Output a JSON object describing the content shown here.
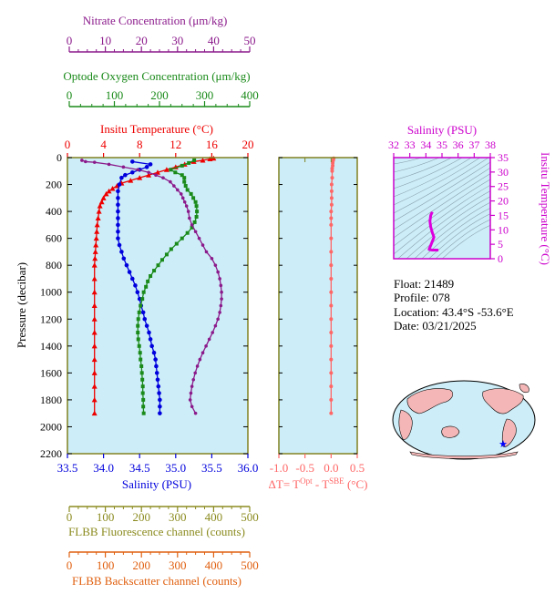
{
  "colors": {
    "nitrate": "#8b1a8b",
    "oxygen": "#1a8a1a",
    "temperature": "#ee0000",
    "salinity": "#0000dd",
    "delta": "#ff6666",
    "salinity_axis": "#cc00cc",
    "fluor": "#8b8b20",
    "backscatter": "#e06010",
    "plot_bg": "#cdeef8",
    "frame": "#808020"
  },
  "info": {
    "float": "Float:  21489",
    "profile": "Profile:  078",
    "location": "Location:  43.4°S  -53.6°E",
    "date": "Date:  03/21/2025"
  },
  "chart_data": [
    {
      "type": "line",
      "ylabel": "Pressure (decibar)",
      "ylim": [
        2200,
        0
      ],
      "yticks": [
        "0",
        "200",
        "400",
        "600",
        "800",
        "1000",
        "1200",
        "1400",
        "1600",
        "1800",
        "2000",
        "2200"
      ],
      "axes": {
        "nitrate": {
          "label": "Nitrate Concentration (μm/kg)",
          "range": [
            0,
            50
          ],
          "ticks": [
            "0",
            "10",
            "20",
            "30",
            "40",
            "50"
          ]
        },
        "oxygen": {
          "label": "Optode Oxygen Concentration (μm/kg)",
          "range": [
            0,
            400
          ],
          "ticks": [
            "0",
            "100",
            "200",
            "300",
            "400"
          ]
        },
        "temperature": {
          "label": "Insitu Temperature (°C)",
          "range": [
            0,
            20
          ],
          "ticks": [
            "0",
            "4",
            "8",
            "12",
            "16",
            "20"
          ]
        },
        "salinity": {
          "label": "Salinity (PSU)",
          "range": [
            33.5,
            36.0
          ],
          "ticks": [
            "33.5",
            "34.0",
            "34.5",
            "35.0",
            "35.5",
            "36.0"
          ]
        },
        "fluor": {
          "label": "FLBB Fluorescence channel (counts)",
          "range": [
            0,
            500
          ],
          "ticks": [
            "0",
            "100",
            "200",
            "300",
            "400",
            "500"
          ]
        },
        "backscatter": {
          "label": "FLBB Backscatter channel (counts)",
          "range": [
            0,
            500
          ],
          "ticks": [
            "0",
            "100",
            "200",
            "300",
            "400",
            "500"
          ]
        }
      },
      "series": [
        {
          "name": "temperature",
          "points": [
            [
              16.2,
              5
            ],
            [
              15.8,
              10
            ],
            [
              15,
              20
            ],
            [
              14,
              30
            ],
            [
              13,
              50
            ],
            [
              12,
              70
            ],
            [
              11,
              90
            ],
            [
              10,
              110
            ],
            [
              9,
              130
            ],
            [
              8,
              150
            ],
            [
              7,
              170
            ],
            [
              6,
              190
            ],
            [
              5.5,
              210
            ],
            [
              5,
              230
            ],
            [
              4.6,
              250
            ],
            [
              4.3,
              270
            ],
            [
              4,
              300
            ],
            [
              3.8,
              330
            ],
            [
              3.6,
              360
            ],
            [
              3.5,
              400
            ],
            [
              3.4,
              450
            ],
            [
              3.3,
              500
            ],
            [
              3.25,
              550
            ],
            [
              3.2,
              600
            ],
            [
              3.15,
              650
            ],
            [
              3.1,
              700
            ],
            [
              3.05,
              750
            ],
            [
              3,
              800
            ],
            [
              3,
              900
            ],
            [
              3,
              1000
            ],
            [
              3,
              1100
            ],
            [
              3,
              1200
            ],
            [
              3,
              1300
            ],
            [
              3,
              1400
            ],
            [
              3,
              1500
            ],
            [
              3,
              1600
            ],
            [
              3,
              1700
            ],
            [
              3,
              1800
            ],
            [
              3,
              1900
            ]
          ]
        },
        {
          "name": "salinity",
          "points": [
            [
              34.4,
              30
            ],
            [
              34.65,
              50
            ],
            [
              34.6,
              70
            ],
            [
              34.5,
              90
            ],
            [
              34.4,
              110
            ],
            [
              34.3,
              130
            ],
            [
              34.25,
              150
            ],
            [
              34.22,
              200
            ],
            [
              34.2,
              250
            ],
            [
              34.2,
              300
            ],
            [
              34.2,
              350
            ],
            [
              34.2,
              400
            ],
            [
              34.2,
              450
            ],
            [
              34.2,
              500
            ],
            [
              34.2,
              550
            ],
            [
              34.2,
              600
            ],
            [
              34.22,
              650
            ],
            [
              34.25,
              700
            ],
            [
              34.28,
              750
            ],
            [
              34.32,
              800
            ],
            [
              34.36,
              850
            ],
            [
              34.4,
              900
            ],
            [
              34.44,
              950
            ],
            [
              34.47,
              1000
            ],
            [
              34.5,
              1050
            ],
            [
              34.52,
              1100
            ],
            [
              34.55,
              1150
            ],
            [
              34.57,
              1200
            ],
            [
              34.6,
              1250
            ],
            [
              34.63,
              1300
            ],
            [
              34.65,
              1350
            ],
            [
              34.67,
              1400
            ],
            [
              34.7,
              1450
            ],
            [
              34.72,
              1500
            ],
            [
              34.73,
              1550
            ],
            [
              34.74,
              1600
            ],
            [
              34.75,
              1650
            ],
            [
              34.76,
              1700
            ],
            [
              34.77,
              1750
            ],
            [
              34.78,
              1800
            ],
            [
              34.78,
              1850
            ],
            [
              34.78,
              1900
            ]
          ]
        },
        {
          "name": "oxygen",
          "points": [
            [
              277,
              20
            ],
            [
              265,
              40
            ],
            [
              250,
              60
            ],
            [
              225,
              90
            ],
            [
              235,
              110
            ],
            [
              250,
              130
            ],
            [
              255,
              150
            ],
            [
              255,
              180
            ],
            [
              258,
              210
            ],
            [
              262,
              240
            ],
            [
              270,
              270
            ],
            [
              275,
              300
            ],
            [
              280,
              330
            ],
            [
              282,
              360
            ],
            [
              283,
              400
            ],
            [
              282,
              440
            ],
            [
              278,
              480
            ],
            [
              272,
              520
            ],
            [
              262,
              560
            ],
            [
              250,
              600
            ],
            [
              238,
              640
            ],
            [
              226,
              680
            ],
            [
              216,
              720
            ],
            [
              206,
              760
            ],
            [
              197,
              800
            ],
            [
              188,
              840
            ],
            [
              180,
              880
            ],
            [
              174,
              920
            ],
            [
              170,
              960
            ],
            [
              165,
              1000
            ],
            [
              162,
              1050
            ],
            [
              158,
              1100
            ],
            [
              155,
              1150
            ],
            [
              153,
              1200
            ],
            [
              152,
              1250
            ],
            [
              152,
              1300
            ],
            [
              153,
              1350
            ],
            [
              155,
              1400
            ],
            [
              157,
              1450
            ],
            [
              158,
              1500
            ],
            [
              160,
              1550
            ],
            [
              161,
              1600
            ],
            [
              162,
              1650
            ],
            [
              163,
              1700
            ],
            [
              163,
              1750
            ],
            [
              164,
              1800
            ],
            [
              164,
              1850
            ],
            [
              165,
              1900
            ]
          ]
        },
        {
          "name": "nitrate",
          "points": [
            [
              3.5,
              20
            ],
            [
              4.5,
              30
            ],
            [
              7,
              35
            ],
            [
              11,
              50
            ],
            [
              15,
              70
            ],
            [
              19,
              90
            ],
            [
              22,
              110
            ],
            [
              24,
              130
            ],
            [
              26,
              150
            ],
            [
              28,
              180
            ],
            [
              29,
              210
            ],
            [
              30,
              240
            ],
            [
              31,
              270
            ],
            [
              31.5,
              300
            ],
            [
              32,
              330
            ],
            [
              32.5,
              360
            ],
            [
              33,
              400
            ],
            [
              33.3,
              450
            ],
            [
              34,
              500
            ],
            [
              35,
              550
            ],
            [
              36,
              600
            ],
            [
              37,
              650
            ],
            [
              38,
              700
            ],
            [
              39.5,
              750
            ],
            [
              40.5,
              800
            ],
            [
              41.2,
              850
            ],
            [
              41.7,
              900
            ],
            [
              42,
              950
            ],
            [
              42.2,
              1000
            ],
            [
              42.2,
              1050
            ],
            [
              42,
              1100
            ],
            [
              41.7,
              1150
            ],
            [
              41.2,
              1200
            ],
            [
              40.5,
              1250
            ],
            [
              39.7,
              1300
            ],
            [
              38.8,
              1350
            ],
            [
              37.9,
              1400
            ],
            [
              37,
              1450
            ],
            [
              36.2,
              1500
            ],
            [
              35.5,
              1550
            ],
            [
              34.9,
              1600
            ],
            [
              34.4,
              1650
            ],
            [
              34,
              1700
            ],
            [
              33.7,
              1750
            ],
            [
              33.5,
              1800
            ],
            [
              34,
              1850
            ],
            [
              35,
              1900
            ]
          ]
        }
      ]
    },
    {
      "type": "line",
      "xlabel": "ΔT= T",
      "xlabel_sup1": "Opt",
      "xlabel_mid": " - T",
      "xlabel_sup2": "SBE",
      "xlabel_end": " (°C)",
      "xlim": [
        -1.0,
        0.5
      ],
      "ylim": [
        2200,
        0
      ],
      "xticks": [
        "-1.0",
        "-0.5",
        "0.0",
        "0.5"
      ],
      "series": [
        {
          "name": "delta",
          "points": [
            [
              0.05,
              5
            ],
            [
              0.04,
              20
            ],
            [
              0.03,
              40
            ],
            [
              0.03,
              60
            ],
            [
              0.02,
              80
            ],
            [
              0.02,
              100
            ],
            [
              0.02,
              150
            ],
            [
              0.01,
              200
            ],
            [
              0.01,
              250
            ],
            [
              0.01,
              300
            ],
            [
              0.01,
              350
            ],
            [
              0.0,
              400
            ],
            [
              0.0,
              450
            ],
            [
              0.0,
              500
            ],
            [
              0.0,
              600
            ],
            [
              0.0,
              700
            ],
            [
              0.0,
              800
            ],
            [
              0.0,
              900
            ],
            [
              0.0,
              1000
            ],
            [
              0.0,
              1100
            ],
            [
              0.0,
              1200
            ],
            [
              0.0,
              1300
            ],
            [
              0.0,
              1400
            ],
            [
              0.0,
              1500
            ],
            [
              0.0,
              1600
            ],
            [
              0.0,
              1700
            ],
            [
              0.0,
              1800
            ],
            [
              0.0,
              1900
            ]
          ]
        }
      ]
    },
    {
      "type": "scatter",
      "xlabel": "Salinity (PSU)",
      "ylabel": "Insitu Temperature (°C)",
      "xlim": [
        32,
        38
      ],
      "ylim": [
        0,
        35
      ],
      "xticks": [
        "32",
        "33",
        "34",
        "35",
        "36",
        "37",
        "38"
      ],
      "yticks": [
        "0",
        "5",
        "10",
        "15",
        "20",
        "25",
        "30",
        "35"
      ],
      "series": [
        {
          "name": "ts",
          "points": [
            [
              34.4,
              16.2
            ],
            [
              34.3,
              15
            ],
            [
              34.25,
              13
            ],
            [
              34.3,
              11
            ],
            [
              34.4,
              9
            ],
            [
              34.5,
              7.5
            ],
            [
              34.4,
              6
            ],
            [
              34.3,
              4.6
            ],
            [
              34.22,
              3.6
            ],
            [
              34.2,
              3.2
            ],
            [
              34.4,
              3
            ],
            [
              34.7,
              3
            ],
            [
              34.78,
              3
            ]
          ]
        }
      ]
    }
  ]
}
